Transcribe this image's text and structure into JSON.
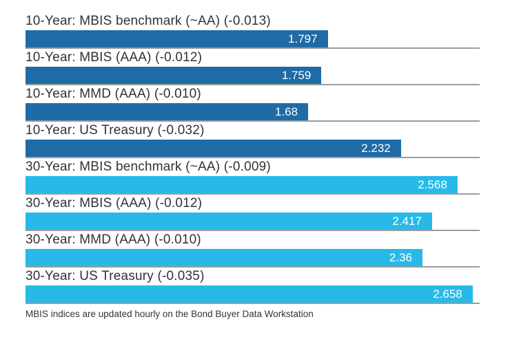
{
  "chart_data": {
    "type": "bar",
    "orientation": "horizontal",
    "title": "",
    "xlabel": "",
    "ylabel": "",
    "xlim": [
      0,
      2.7
    ],
    "grid": "row-separator-lines",
    "value_label_position": "inside-end",
    "categories": [
      "10-Year: MBIS benchmark (~AA) (-0.013)",
      "10-Year: MBIS (AAA) (-0.012)",
      "10-Year: MMD (AAA) (-0.010)",
      "10-Year: US Treasury (-0.032)",
      "30-Year: MBIS benchmark (~AA) (-0.009)",
      "30-Year: MBIS (AAA) (-0.012)",
      "30-Year: MMD (AAA) (-0.010)",
      "30-Year: US Treasury (-0.035)"
    ],
    "values": [
      1.797,
      1.759,
      1.68,
      2.232,
      2.568,
      2.417,
      2.36,
      2.658
    ],
    "display_values": [
      "1.797",
      "1.759",
      "1.68",
      "2.232",
      "2.568",
      "2.417",
      "2.36",
      "2.658"
    ],
    "groups": [
      "10-year",
      "10-year",
      "10-year",
      "10-year",
      "30-year",
      "30-year",
      "30-year",
      "30-year"
    ],
    "colors": {
      "10-year": "#1F6BA5",
      "30-year": "#27BAE8",
      "separator": "#9b9b9b",
      "label_text": "#323232",
      "value_text": "#ffffff"
    },
    "footnote": "MBIS indices are updated hourly on the Bond Buyer Data Workstation"
  }
}
